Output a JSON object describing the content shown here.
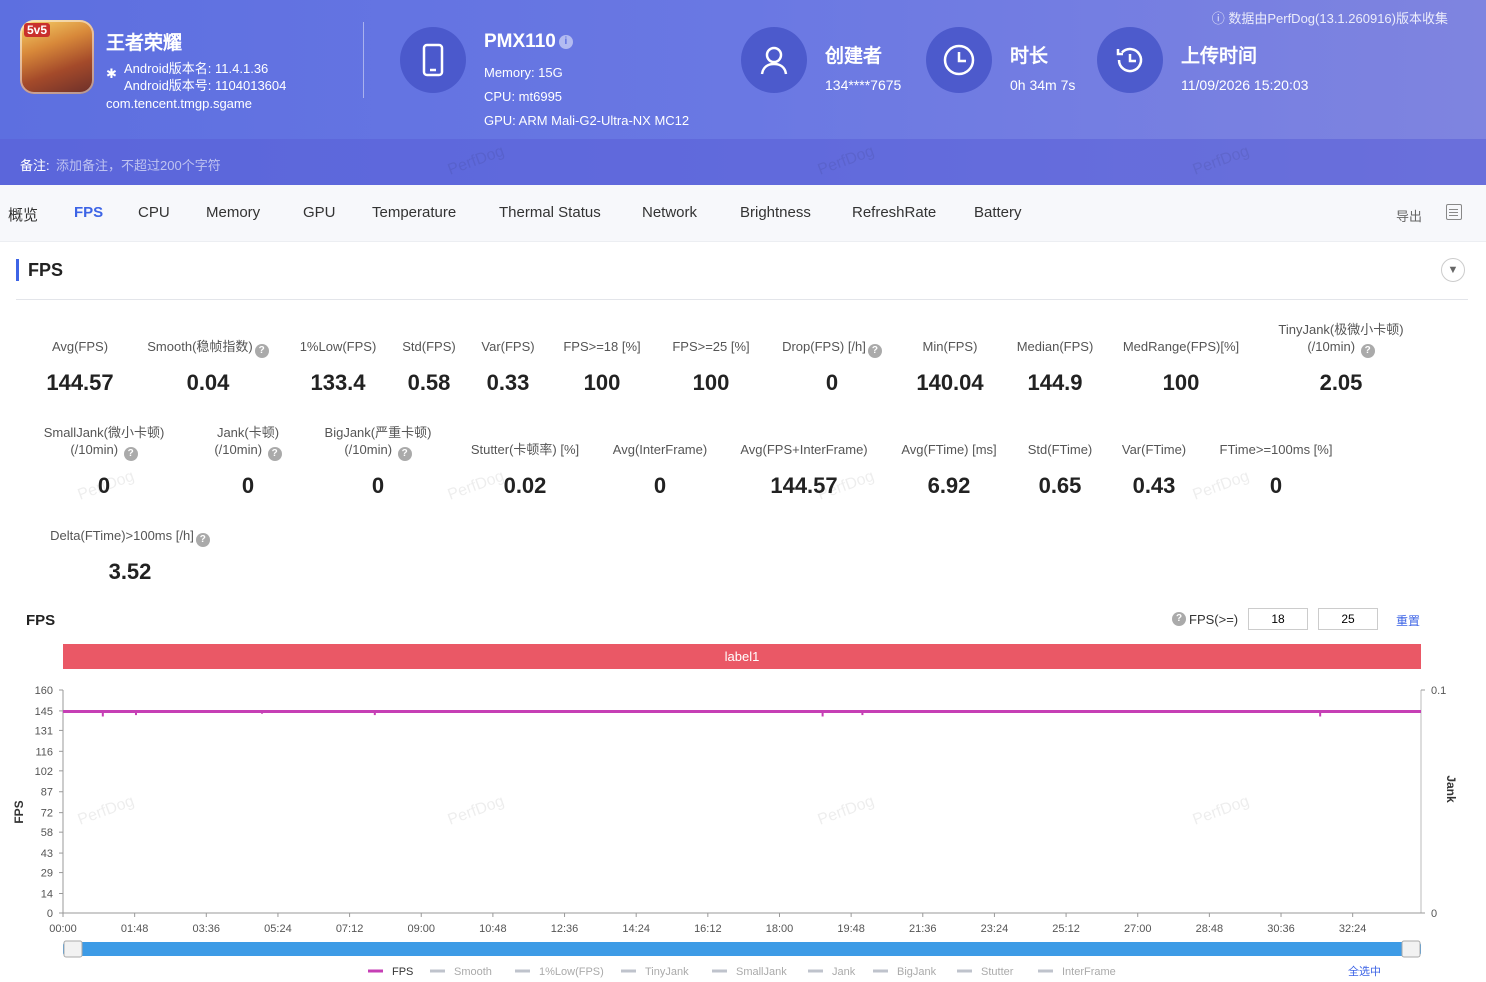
{
  "header": {
    "app_name": "王者荣耀",
    "app_badge": "5v5",
    "version_name": "Android版本名: 11.4.1.36",
    "version_code": "Android版本号: 1104013604",
    "package": "com.tencent.tmgp.sgame",
    "device_name": "PMX110",
    "memory": "Memory: 15G",
    "cpu": "CPU: mt6995",
    "gpu": "GPU: ARM Mali-G2-Ultra-NX MC12",
    "creator_title": "创建者",
    "creator_value": "134****7675",
    "duration_title": "时长",
    "duration_value": "0h 34m 7s",
    "upload_title": "上传时间",
    "upload_value": "11/09/2026 15:20:03",
    "collect_note": "数据由PerfDog(13.1.260916)版本收集",
    "note_label": "备注:",
    "note_placeholder": "添加备注，不超过200个字符"
  },
  "tabs": [
    "概览",
    "FPS",
    "CPU",
    "Memory",
    "GPU",
    "Temperature",
    "Thermal Status",
    "Network",
    "Brightness",
    "RefreshRate",
    "Battery"
  ],
  "active_tab": "FPS",
  "export_label": "导出",
  "section_title": "FPS",
  "metrics_row1": [
    {
      "label": "Avg(FPS)",
      "value": "144.57"
    },
    {
      "label": "Smooth(稳帧指数)",
      "value": "0.04"
    },
    {
      "label": "1%Low(FPS)",
      "value": "133.4"
    },
    {
      "label": "Std(FPS)",
      "value": "0.58"
    },
    {
      "label": "Var(FPS)",
      "value": "0.33"
    },
    {
      "label": "FPS>=18 [%]",
      "value": "100"
    },
    {
      "label": "FPS>=25 [%]",
      "value": "100"
    },
    {
      "label": "Drop(FPS) [/h]",
      "value": "0"
    },
    {
      "label": "Min(FPS)",
      "value": "140.04"
    },
    {
      "label": "Median(FPS)",
      "value": "144.9"
    },
    {
      "label": "MedRange(FPS)[%]",
      "value": "100"
    },
    {
      "label": "TinyJank(极微小卡顿)",
      "label2": "(/10min)",
      "value": "2.05"
    }
  ],
  "metrics_row2": [
    {
      "label": "SmallJank(微小卡顿)",
      "label2": "(/10min)",
      "value": "0"
    },
    {
      "label": "Jank(卡顿)",
      "label2": "(/10min)",
      "value": "0"
    },
    {
      "label": "BigJank(严重卡顿)",
      "label2": "(/10min)",
      "value": "0"
    },
    {
      "label": "Stutter(卡顿率) [%]",
      "value": "0.02"
    },
    {
      "label": "Avg(InterFrame)",
      "value": "0"
    },
    {
      "label": "Avg(FPS+InterFrame)",
      "value": "144.57"
    },
    {
      "label": "Avg(FTime) [ms]",
      "value": "6.92"
    },
    {
      "label": "Std(FTime)",
      "value": "0.65"
    },
    {
      "label": "Var(FTime)",
      "value": "0.43"
    },
    {
      "label": "FTime>=100ms [%]",
      "value": "0"
    }
  ],
  "metrics_row3": [
    {
      "label": "Delta(FTime)>100ms [/h]",
      "value": "3.52"
    }
  ],
  "chart_controls": {
    "title": "FPS",
    "threshold_label": "FPS(>=)",
    "threshold1": "18",
    "threshold2": "25",
    "reset_label": "重置",
    "band_label": "label1",
    "select_all": "全选中"
  },
  "chart_data": {
    "type": "line",
    "title": "FPS",
    "ylabel": "FPS",
    "y2label": "Jank",
    "ylim": [
      0,
      160
    ],
    "y2lim": [
      0,
      0.1
    ],
    "yticks": [
      0,
      14,
      29,
      43,
      58,
      72,
      87,
      102,
      116,
      131,
      145,
      160
    ],
    "y2ticks": [
      0,
      0.1
    ],
    "xticks": [
      "00:00",
      "01:48",
      "03:36",
      "05:24",
      "07:12",
      "09:00",
      "10:48",
      "12:36",
      "14:24",
      "16:12",
      "18:00",
      "19:48",
      "21:36",
      "23:24",
      "25:12",
      "27:00",
      "28:48",
      "30:36",
      "32:24"
    ],
    "x_range_seconds": [
      0,
      2047
    ],
    "series": [
      {
        "name": "FPS",
        "color": "#c63fb5",
        "approx_value": 144.6,
        "dips": [
          [
            60,
            141
          ],
          [
            110,
            142
          ],
          [
            300,
            143
          ],
          [
            470,
            142
          ],
          [
            1145,
            141
          ],
          [
            1205,
            142
          ],
          [
            1895,
            141
          ]
        ]
      },
      {
        "name": "Smooth",
        "color": "#bfc3cc"
      },
      {
        "name": "1%Low(FPS)",
        "color": "#bfc3cc"
      },
      {
        "name": "TinyJank",
        "color": "#bfc3cc"
      },
      {
        "name": "SmallJank",
        "color": "#bfc3cc"
      },
      {
        "name": "Jank",
        "color": "#bfc3cc"
      },
      {
        "name": "BigJank",
        "color": "#bfc3cc"
      },
      {
        "name": "Stutter",
        "color": "#bfc3cc"
      },
      {
        "name": "InterFrame",
        "color": "#bfc3cc"
      }
    ],
    "label_band_color": "#ea5866",
    "grid": false
  },
  "watermark": "PerfDog"
}
